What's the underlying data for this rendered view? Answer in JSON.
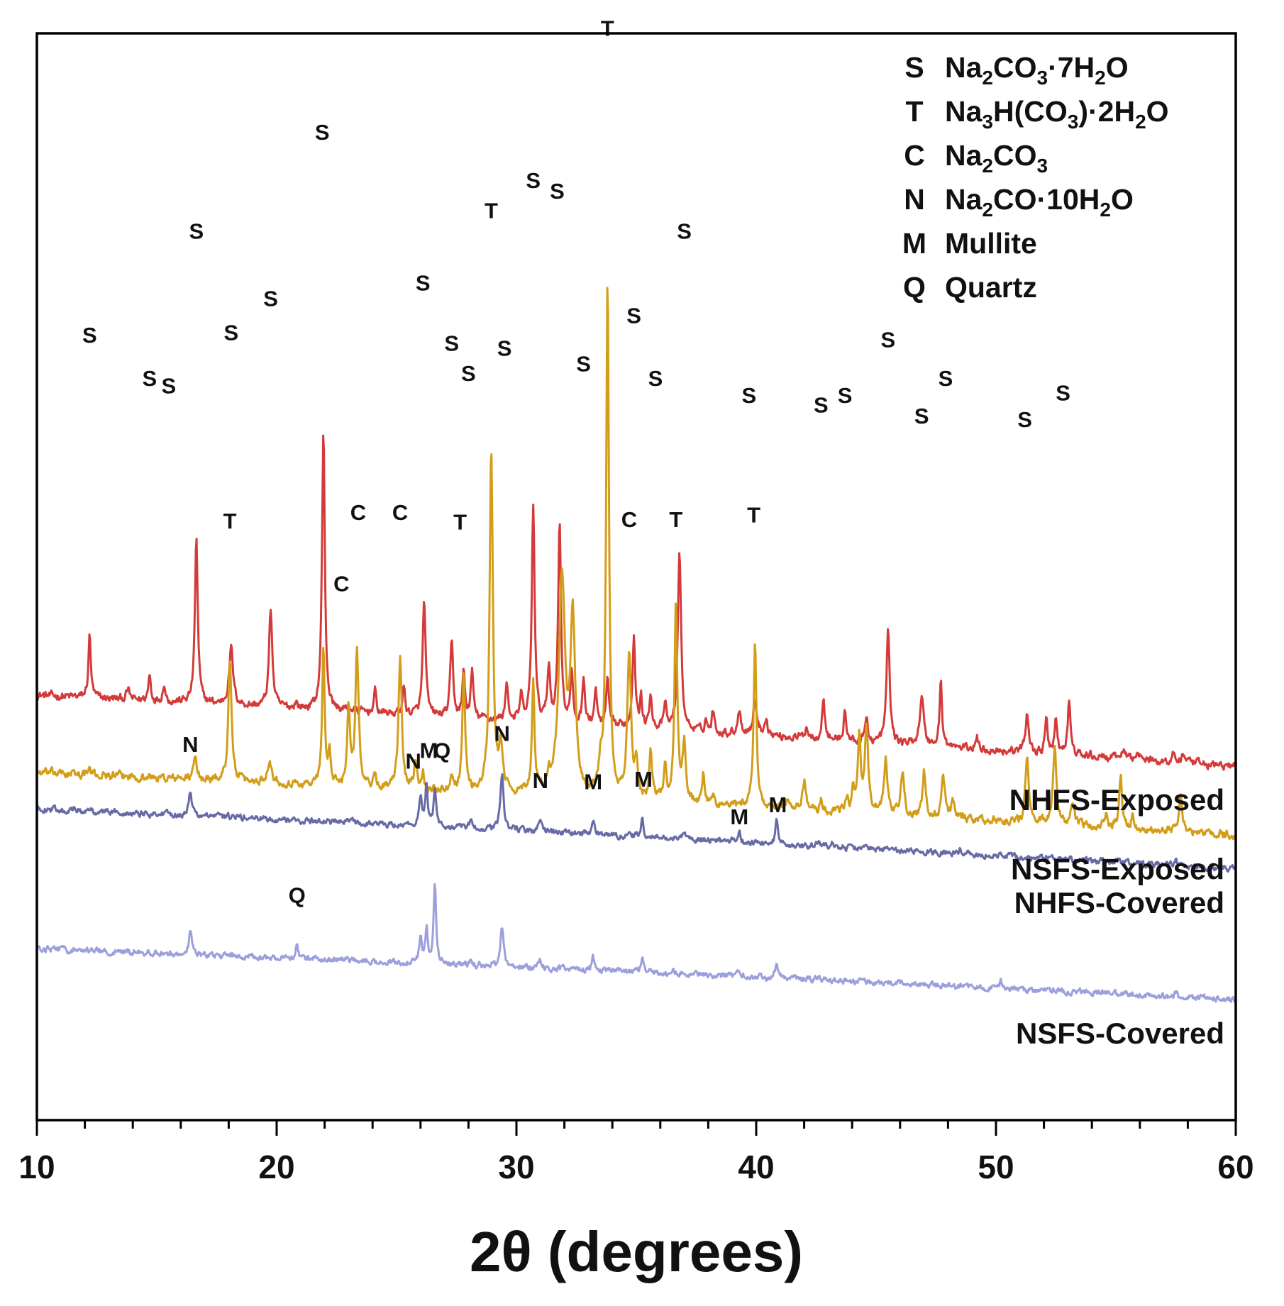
{
  "chart_data": {
    "type": "line",
    "title": "",
    "xlabel": "2θ (degrees)",
    "ylabel": "",
    "xlim": [
      10,
      60
    ],
    "x_ticks": [
      10,
      20,
      30,
      40,
      50,
      60
    ],
    "y_ticks": [],
    "grid": false,
    "legend_position": "top-right",
    "legend": [
      {
        "symbol": "S",
        "parts": [
          {
            "t": "Na"
          },
          {
            "t": "2",
            "sub": true
          },
          {
            "t": "CO"
          },
          {
            "t": "3",
            "sub": true
          },
          {
            "t": "·7H"
          },
          {
            "t": "2",
            "sub": true
          },
          {
            "t": "O"
          }
        ]
      },
      {
        "symbol": "T",
        "parts": [
          {
            "t": "Na"
          },
          {
            "t": "3",
            "sub": true
          },
          {
            "t": "H(CO"
          },
          {
            "t": "3",
            "sub": true
          },
          {
            "t": ")·2H"
          },
          {
            "t": "2",
            "sub": true
          },
          {
            "t": "O"
          }
        ]
      },
      {
        "symbol": "C",
        "parts": [
          {
            "t": "Na"
          },
          {
            "t": "2",
            "sub": true
          },
          {
            "t": "CO"
          },
          {
            "t": "3",
            "sub": true
          }
        ]
      },
      {
        "symbol": "N",
        "parts": [
          {
            "t": "Na"
          },
          {
            "t": "2",
            "sub": true
          },
          {
            "t": "CO·10H"
          },
          {
            "t": "2",
            "sub": true
          },
          {
            "t": "O"
          }
        ]
      },
      {
        "symbol": "M",
        "parts": [
          {
            "t": "Mullite"
          }
        ]
      },
      {
        "symbol": "Q",
        "parts": [
          {
            "t": "Quartz"
          }
        ]
      }
    ],
    "series": [
      {
        "name": "NHFS-Exposed",
        "color": "#d43a3a",
        "baseline_start": 1.52,
        "baseline_end": 0.93,
        "noise": 0.02,
        "peaks": [
          [
            12.2,
            0.52,
            0.06
          ],
          [
            13.8,
            0.08,
            0.08
          ],
          [
            14.7,
            0.22,
            0.06
          ],
          [
            15.3,
            0.15,
            0.06
          ],
          [
            16.65,
            1.38,
            0.07
          ],
          [
            18.1,
            0.47,
            0.1
          ],
          [
            19.75,
            0.82,
            0.08
          ],
          [
            20.8,
            0.05,
            0.06
          ],
          [
            21.95,
            2.3,
            0.07
          ],
          [
            23.0,
            0.05,
            0.06
          ],
          [
            24.1,
            0.18,
            0.06
          ],
          [
            25.3,
            0.23,
            0.06
          ],
          [
            26.15,
            0.97,
            0.07
          ],
          [
            27.3,
            0.62,
            0.07
          ],
          [
            27.8,
            0.38,
            0.06
          ],
          [
            28.15,
            0.4,
            0.06
          ],
          [
            29.6,
            0.33,
            0.06
          ],
          [
            30.2,
            0.2,
            0.06
          ],
          [
            30.7,
            1.8,
            0.07
          ],
          [
            31.35,
            0.45,
            0.07
          ],
          [
            31.8,
            1.68,
            0.07
          ],
          [
            32.3,
            0.42,
            0.06
          ],
          [
            32.8,
            0.4,
            0.06
          ],
          [
            33.3,
            0.3,
            0.06
          ],
          [
            33.8,
            0.4,
            0.06
          ],
          [
            34.9,
            0.78,
            0.07
          ],
          [
            35.2,
            0.25,
            0.05
          ],
          [
            35.6,
            0.3,
            0.06
          ],
          [
            36.2,
            0.2,
            0.06
          ],
          [
            36.8,
            1.5,
            0.08
          ],
          [
            37.9,
            0.1,
            0.06
          ],
          [
            38.2,
            0.18,
            0.06
          ],
          [
            39.3,
            0.2,
            0.08
          ],
          [
            39.95,
            0.28,
            0.09
          ],
          [
            40.4,
            0.14,
            0.08
          ],
          [
            42.1,
            0.1,
            0.07
          ],
          [
            42.8,
            0.34,
            0.07
          ],
          [
            43.7,
            0.25,
            0.06
          ],
          [
            44.6,
            0.21,
            0.06
          ],
          [
            45.5,
            0.93,
            0.08
          ],
          [
            46.9,
            0.4,
            0.1
          ],
          [
            47.7,
            0.55,
            0.06
          ],
          [
            49.2,
            0.1,
            0.06
          ],
          [
            51.3,
            0.33,
            0.08
          ],
          [
            52.1,
            0.28,
            0.06
          ],
          [
            52.5,
            0.32,
            0.06
          ],
          [
            53.05,
            0.45,
            0.07
          ],
          [
            55.3,
            0.08,
            0.07
          ],
          [
            55.9,
            0.1,
            0.06
          ],
          [
            57.4,
            0.08,
            0.06
          ],
          [
            57.8,
            0.09,
            0.06
          ]
        ],
        "labels": [
          {
            "text": "S",
            "x": 12.2,
            "y": 4.44
          },
          {
            "text": "S",
            "x": 14.7,
            "y": 4.08
          },
          {
            "text": "S",
            "x": 15.5,
            "y": 4.02
          },
          {
            "text": "S",
            "x": 16.65,
            "y": 5.3
          },
          {
            "text": "S",
            "x": 18.1,
            "y": 4.46
          },
          {
            "text": "S",
            "x": 19.75,
            "y": 4.74
          },
          {
            "text": "S",
            "x": 21.9,
            "y": 6.12
          },
          {
            "text": "S",
            "x": 26.1,
            "y": 4.87
          },
          {
            "text": "S",
            "x": 27.3,
            "y": 4.37
          },
          {
            "text": "S",
            "x": 28.0,
            "y": 4.12
          },
          {
            "text": "S",
            "x": 29.5,
            "y": 4.33
          },
          {
            "text": "S",
            "x": 30.7,
            "y": 5.72
          },
          {
            "text": "S",
            "x": 31.7,
            "y": 5.63
          },
          {
            "text": "S",
            "x": 32.8,
            "y": 4.2
          },
          {
            "text": "S",
            "x": 34.9,
            "y": 4.6
          },
          {
            "text": "S",
            "x": 35.8,
            "y": 4.08
          },
          {
            "text": "S",
            "x": 37.0,
            "y": 5.3
          },
          {
            "text": "S",
            "x": 39.7,
            "y": 3.94
          },
          {
            "text": "S",
            "x": 42.7,
            "y": 3.86
          },
          {
            "text": "S",
            "x": 43.7,
            "y": 3.94
          },
          {
            "text": "S",
            "x": 45.5,
            "y": 4.4
          },
          {
            "text": "S",
            "x": 46.9,
            "y": 3.77
          },
          {
            "text": "S",
            "x": 47.9,
            "y": 4.08
          },
          {
            "text": "S",
            "x": 51.2,
            "y": 3.74
          },
          {
            "text": "S",
            "x": 52.8,
            "y": 3.96
          }
        ]
      },
      {
        "name": "NSFS-Exposed",
        "color": "#d39d1a",
        "baseline_start": 0.88,
        "baseline_end": 0.36,
        "noise": 0.02,
        "peaks": [
          [
            12.2,
            0.05,
            0.06
          ],
          [
            16.6,
            0.18,
            0.08
          ],
          [
            18.05,
            1.02,
            0.08
          ],
          [
            19.7,
            0.2,
            0.1
          ],
          [
            21.95,
            1.17,
            0.06
          ],
          [
            22.2,
            0.27,
            0.06
          ],
          [
            23.0,
            0.65,
            0.07
          ],
          [
            23.35,
            1.15,
            0.08
          ],
          [
            24.1,
            0.1,
            0.06
          ],
          [
            25.15,
            1.08,
            0.08
          ],
          [
            25.8,
            0.25,
            0.07
          ],
          [
            26.1,
            0.15,
            0.06
          ],
          [
            27.3,
            0.15,
            0.07
          ],
          [
            27.8,
            0.99,
            0.07
          ],
          [
            28.95,
            2.82,
            0.08
          ],
          [
            29.35,
            0.35,
            0.1
          ],
          [
            30.7,
            0.96,
            0.06
          ],
          [
            31.35,
            0.15,
            0.06
          ],
          [
            31.9,
            1.8,
            0.15
          ],
          [
            32.35,
            1.45,
            0.12
          ],
          [
            33.5,
            0.2,
            0.07
          ],
          [
            33.8,
            4.27,
            0.07
          ],
          [
            34.7,
            1.22,
            0.09
          ],
          [
            35.0,
            0.3,
            0.07
          ],
          [
            35.6,
            0.4,
            0.07
          ],
          [
            36.2,
            0.3,
            0.07
          ],
          [
            36.65,
            1.63,
            0.07
          ],
          [
            37.0,
            0.5,
            0.08
          ],
          [
            37.8,
            0.25,
            0.06
          ],
          [
            38.2,
            0.07,
            0.06
          ],
          [
            39.95,
            1.4,
            0.07
          ],
          [
            41.3,
            0.08,
            0.06
          ],
          [
            42.0,
            0.25,
            0.08
          ],
          [
            42.7,
            0.09,
            0.06
          ],
          [
            43.8,
            0.15,
            0.06
          ],
          [
            44.05,
            0.2,
            0.06
          ],
          [
            44.3,
            0.6,
            0.07
          ],
          [
            44.6,
            0.7,
            0.08
          ],
          [
            45.4,
            0.47,
            0.08
          ],
          [
            46.1,
            0.35,
            0.08
          ],
          [
            47.0,
            0.38,
            0.07
          ],
          [
            47.8,
            0.35,
            0.08
          ],
          [
            48.2,
            0.14,
            0.07
          ],
          [
            51.3,
            0.57,
            0.08
          ],
          [
            52.45,
            0.62,
            0.09
          ],
          [
            53.2,
            0.18,
            0.07
          ],
          [
            54.6,
            0.1,
            0.07
          ],
          [
            55.2,
            0.45,
            0.07
          ],
          [
            55.7,
            0.12,
            0.06
          ],
          [
            57.7,
            0.3,
            0.08
          ]
        ],
        "labels": [
          {
            "text": "T",
            "x": 18.05,
            "y": 2.9
          },
          {
            "text": "C",
            "x": 22.7,
            "y": 2.38
          },
          {
            "text": "C",
            "x": 23.4,
            "y": 2.97
          },
          {
            "text": "C",
            "x": 25.15,
            "y": 2.97
          },
          {
            "text": "T",
            "x": 27.65,
            "y": 2.89
          },
          {
            "text": "T",
            "x": 28.95,
            "y": 5.47
          },
          {
            "text": "T",
            "x": 33.8,
            "y": 6.98
          },
          {
            "text": "C",
            "x": 34.7,
            "y": 2.91
          },
          {
            "text": "T",
            "x": 36.65,
            "y": 2.91
          },
          {
            "text": "T",
            "x": 39.9,
            "y": 2.95
          }
        ]
      },
      {
        "name": "NHFS-Covered",
        "color": "#676aa5",
        "baseline_start": 0.58,
        "baseline_end": 0.08,
        "noise": 0.015,
        "peaks": [
          [
            16.4,
            0.2,
            0.07
          ],
          [
            23.1,
            0.04,
            0.06
          ],
          [
            26.0,
            0.25,
            0.07
          ],
          [
            26.25,
            0.35,
            0.06
          ],
          [
            26.6,
            0.29,
            0.06
          ],
          [
            28.1,
            0.06,
            0.06
          ],
          [
            29.4,
            0.45,
            0.08
          ],
          [
            31.0,
            0.1,
            0.08
          ],
          [
            33.2,
            0.11,
            0.06
          ],
          [
            35.25,
            0.14,
            0.06
          ],
          [
            37.0,
            0.05,
            0.06
          ],
          [
            39.3,
            0.07,
            0.07
          ],
          [
            40.85,
            0.18,
            0.06
          ],
          [
            42.6,
            0.05,
            0.06
          ],
          [
            43.2,
            0.04,
            0.06
          ],
          [
            48.5,
            0.04,
            0.06
          ],
          [
            57.5,
            0.05,
            0.07
          ]
        ],
        "labels": [
          {
            "text": "N",
            "x": 16.4,
            "y": 1.05
          },
          {
            "text": "N",
            "x": 25.7,
            "y": 0.91
          },
          {
            "text": "M",
            "x": 26.35,
            "y": 1.0
          },
          {
            "text": "Q",
            "x": 26.9,
            "y": 1.0
          },
          {
            "text": "N",
            "x": 29.4,
            "y": 1.14
          },
          {
            "text": "N",
            "x": 31.0,
            "y": 0.75
          },
          {
            "text": "M",
            "x": 33.2,
            "y": 0.74
          },
          {
            "text": "M",
            "x": 35.3,
            "y": 0.76
          },
          {
            "text": "M",
            "x": 39.3,
            "y": 0.45
          },
          {
            "text": "M",
            "x": 40.9,
            "y": 0.55
          }
        ]
      },
      {
        "name": "NSFS-Covered",
        "color": "#9b9fdc",
        "baseline_start": -0.58,
        "baseline_end": -1.0,
        "noise": 0.015,
        "peaks": [
          [
            16.4,
            0.2,
            0.07
          ],
          [
            20.85,
            0.12,
            0.06
          ],
          [
            26.0,
            0.2,
            0.06
          ],
          [
            26.25,
            0.3,
            0.06
          ],
          [
            26.6,
            0.67,
            0.06
          ],
          [
            28.1,
            0.04,
            0.06
          ],
          [
            29.4,
            0.33,
            0.08
          ],
          [
            31.0,
            0.07,
            0.08
          ],
          [
            33.2,
            0.12,
            0.06
          ],
          [
            35.25,
            0.14,
            0.06
          ],
          [
            36.5,
            0.04,
            0.07
          ],
          [
            39.3,
            0.05,
            0.07
          ],
          [
            40.85,
            0.15,
            0.06
          ],
          [
            42.6,
            0.06,
            0.06
          ],
          [
            50.2,
            0.05,
            0.06
          ],
          [
            57.5,
            0.04,
            0.06
          ]
        ],
        "labels": [
          {
            "text": "Q",
            "x": 20.85,
            "y": -0.2
          }
        ]
      }
    ],
    "y_range": [
      -2.0,
      7.0
    ]
  }
}
